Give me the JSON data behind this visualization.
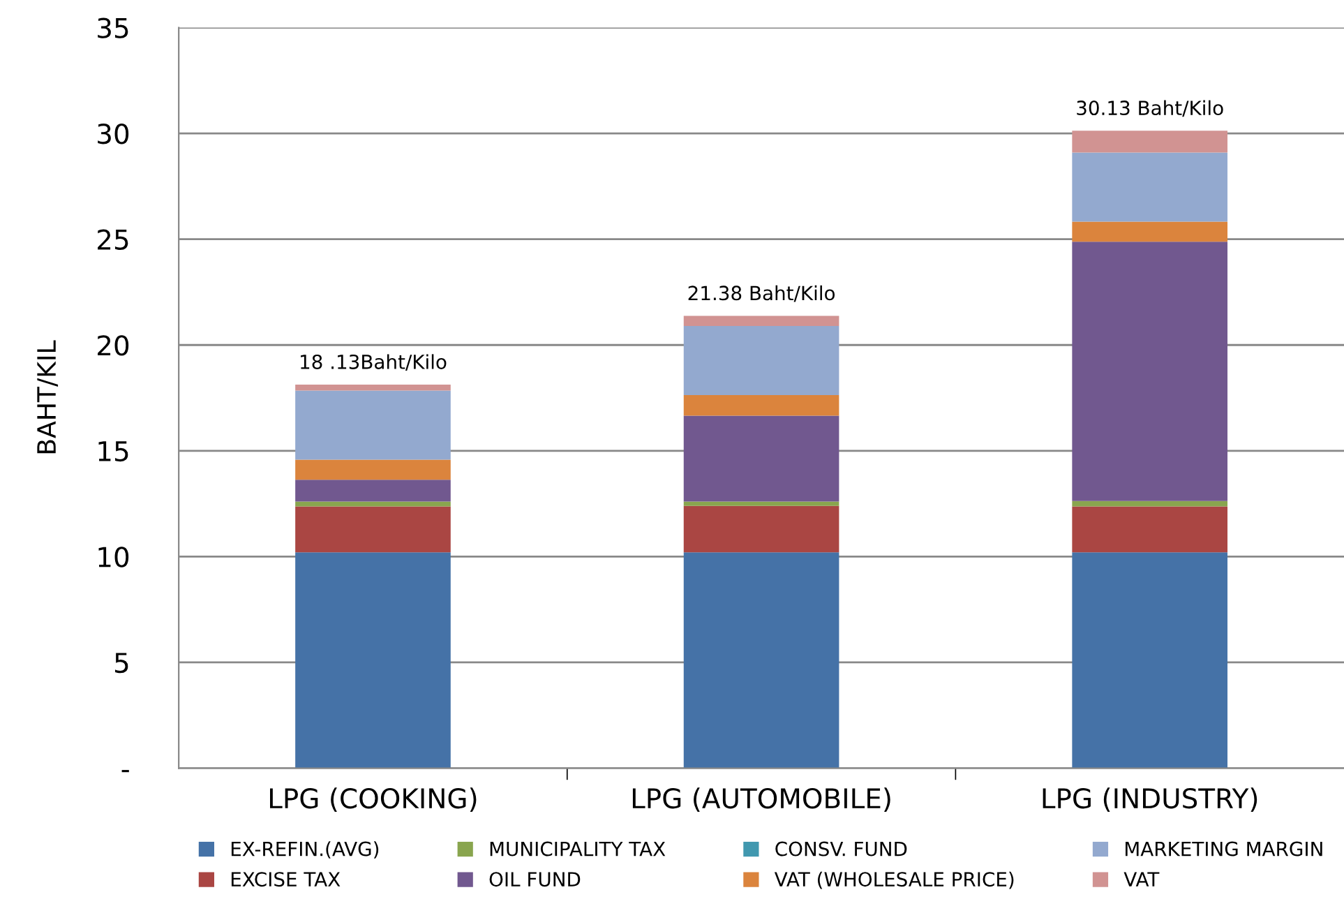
{
  "chart_data": {
    "type": "bar",
    "stacked": true,
    "ylabel": "BAHT/KIL",
    "categories": [
      "LPG (COOKING)",
      "LPG (AUTOMOBILE)",
      "LPG (INDUSTRY)"
    ],
    "series": [
      {
        "name": "EX-REFIN.(AVG)",
        "color": "#4572a7",
        "values": [
          10.2,
          10.2,
          10.2
        ]
      },
      {
        "name": "EXCISE TAX",
        "color": "#aa4643",
        "values": [
          2.17,
          2.2,
          2.17
        ]
      },
      {
        "name": "MUNICIPALITY TAX",
        "color": "#89a54e",
        "values": [
          0.23,
          0.2,
          0.26
        ]
      },
      {
        "name": "OIL FUND",
        "color": "#71588f",
        "values": [
          1.03,
          4.06,
          12.25
        ]
      },
      {
        "name": "CONSV. FUND",
        "color": "#4198af",
        "values": [
          0,
          0,
          0
        ]
      },
      {
        "name": "VAT (WHOLESALE PRICE)",
        "color": "#db843d",
        "values": [
          0.95,
          0.97,
          0.95
        ]
      },
      {
        "name": "MARKETING MARGIN",
        "color": "#93a9cf",
        "values": [
          3.27,
          3.27,
          3.27
        ]
      },
      {
        "name": "VAT",
        "color": "#d19392",
        "values": [
          0.28,
          0.48,
          1.03
        ]
      }
    ],
    "totals": [
      "18 .13Baht/Kilo",
      "21.38 Baht/Kilo",
      "30.13 Baht/Kilo"
    ],
    "ylim": [
      0,
      35
    ],
    "yticks": [
      {
        "value": 0,
        "label": "-"
      },
      5,
      10,
      15,
      20,
      25,
      30,
      35
    ],
    "grid": "y",
    "legend": "bottom"
  }
}
